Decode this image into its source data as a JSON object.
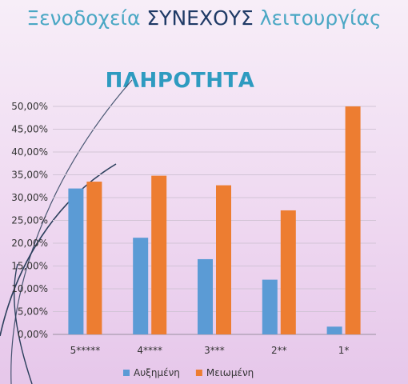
{
  "slide": {
    "title_part1": "Ξενοδοχεία ",
    "title_part2": "ΣΥΝΕΧΟΥΣ",
    "title_part3": " λειτουργίας"
  },
  "colors": {
    "increased": "#5b9bd5",
    "decreased": "#ed7d31",
    "grid": "#d2c4d6",
    "axis": "#9a8fa0",
    "decor_line": "#2b3f5c"
  },
  "chart_data": {
    "type": "bar",
    "title": "ΠΛΗΡΟΤΗΤΑ",
    "categories": [
      "5*****",
      "4****",
      "3***",
      "2**",
      "1*"
    ],
    "series": [
      {
        "name": "Αυξημένη",
        "values": [
          0.32,
          0.212,
          0.165,
          0.12,
          0.017
        ]
      },
      {
        "name": "Μειωμένη",
        "values": [
          0.335,
          0.348,
          0.327,
          0.272,
          0.5
        ]
      }
    ],
    "ylim": [
      0,
      0.5
    ],
    "y_ticks": [
      "0,00%",
      "5,00%",
      "10,00%",
      "15,00%",
      "20,00%",
      "25,00%",
      "30,00%",
      "35,00%",
      "40,00%",
      "45,00%",
      "50,00%"
    ],
    "grid": true,
    "legend_position": "bottom"
  }
}
